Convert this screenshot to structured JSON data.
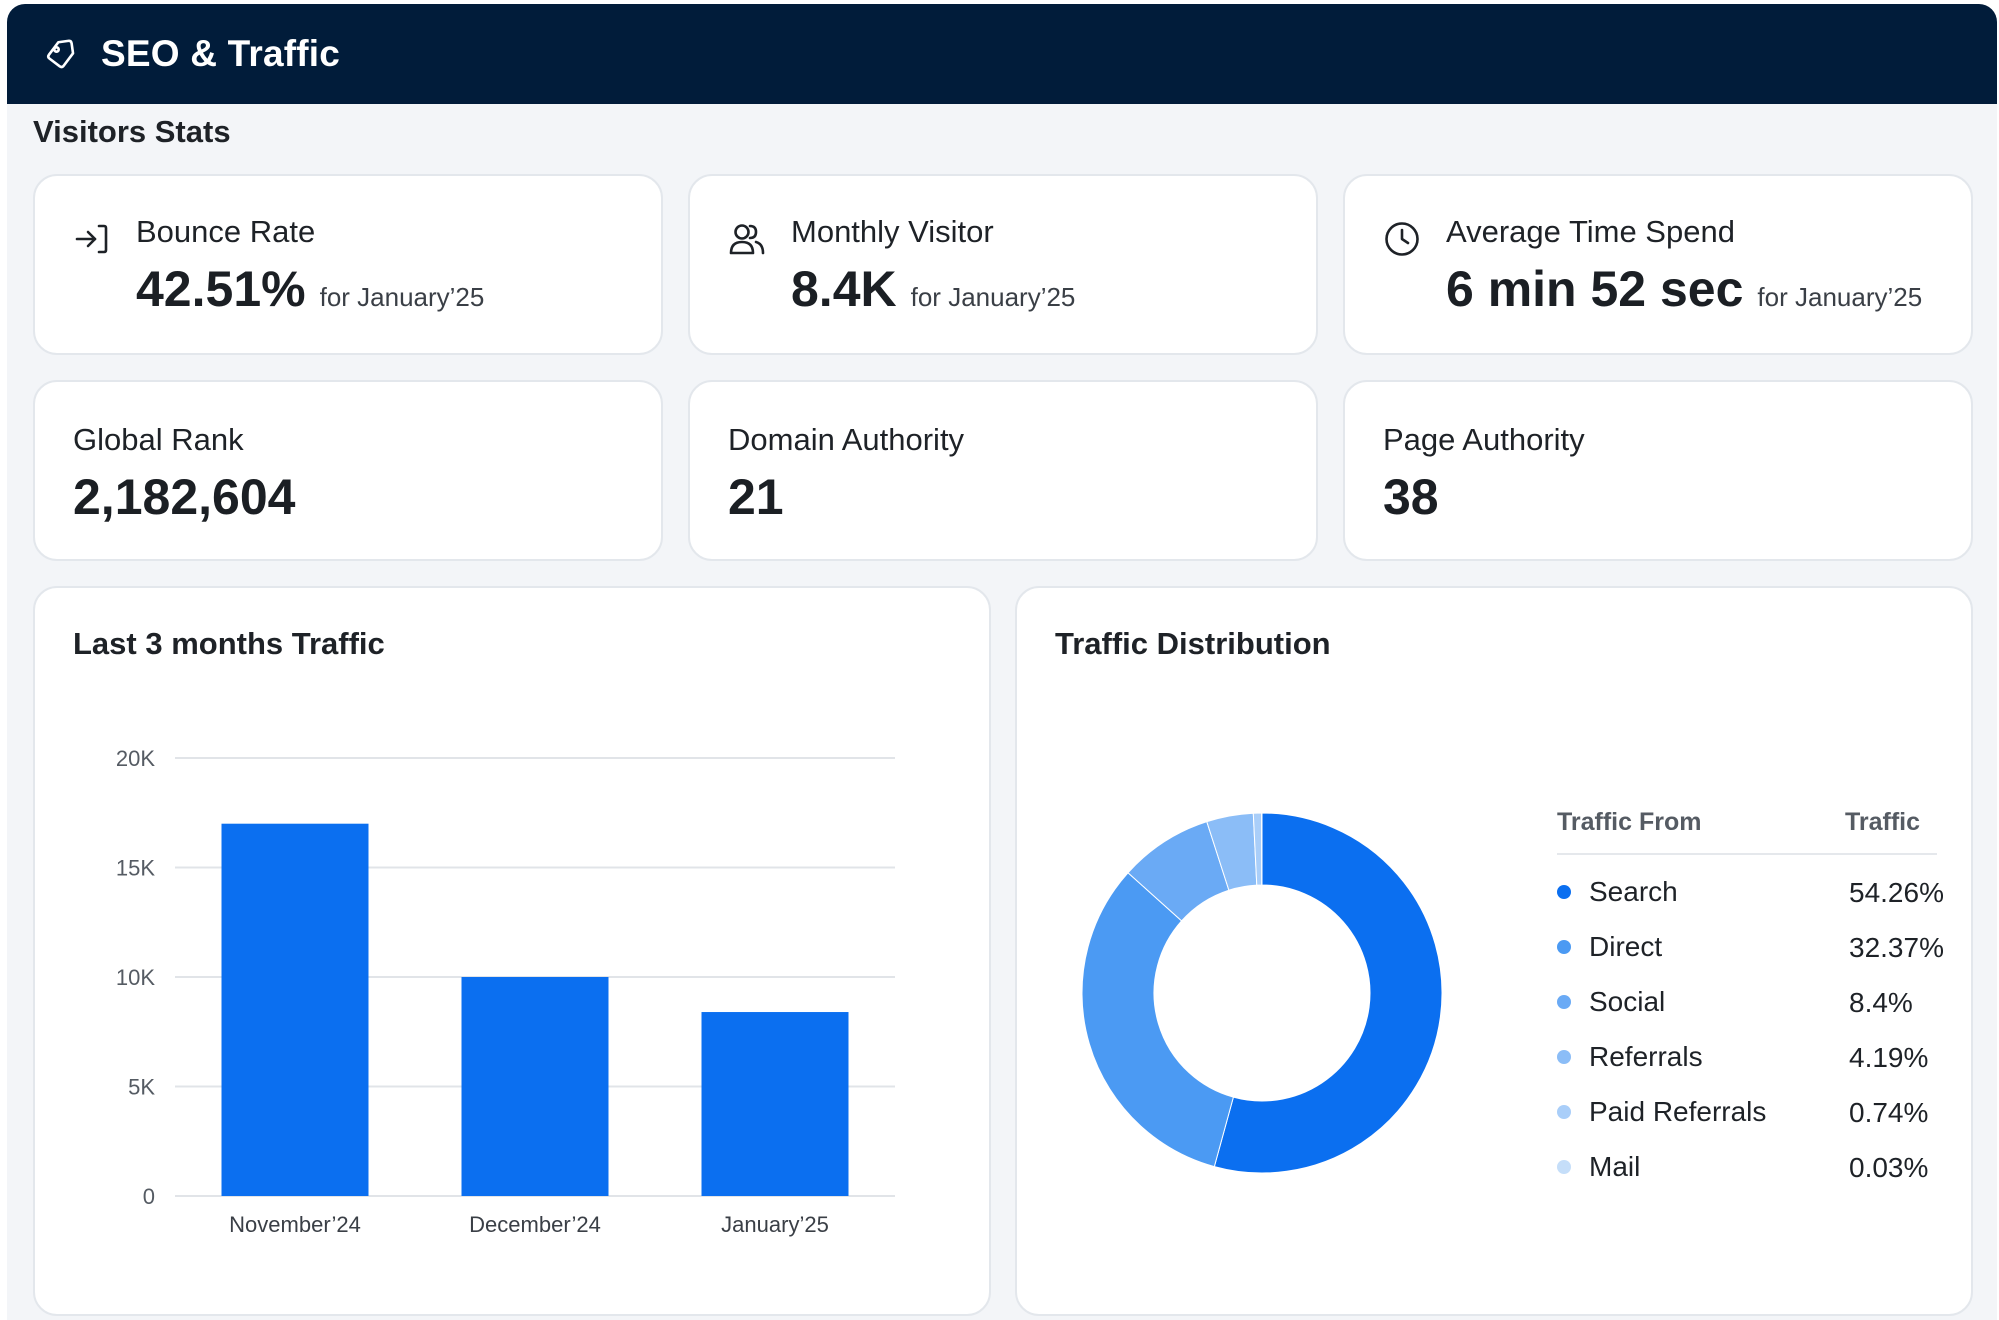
{
  "header": {
    "title": "SEO & Traffic",
    "icon": "tag-icon",
    "background": "#011c3a"
  },
  "visitors": {
    "section_title": "Visitors Stats",
    "bounce_rate": {
      "label": "Bounce Rate",
      "value": "42.51%",
      "period": "for January’25",
      "icon": "enter-arrow-icon"
    },
    "monthly_visitor": {
      "label": "Monthly Visitor",
      "value": "8.4K",
      "period": "for January’25",
      "icon": "users-icon"
    },
    "avg_time": {
      "label": "Average Time Spend",
      "value": "6 min 52 sec",
      "period": "for January’25",
      "icon": "clock-icon"
    },
    "global_rank": {
      "label": "Global Rank",
      "value": "2,182,604"
    },
    "domain_authority": {
      "label": "Domain Authority",
      "value": "21"
    },
    "page_authority": {
      "label": "Page Authority",
      "value": "38"
    }
  },
  "traffic_chart": {
    "title": "Last 3 months Traffic"
  },
  "distribution": {
    "title": "Traffic Distribution",
    "col_from": "Traffic From",
    "col_traffic": "Traffic",
    "rows": [
      {
        "name": "Search",
        "pct": "54.26%",
        "color": "#0b6ff0"
      },
      {
        "name": "Direct",
        "pct": "32.37%",
        "color": "#4b9af3"
      },
      {
        "name": "Social",
        "pct": "8.4%",
        "color": "#6aaaf5"
      },
      {
        "name": "Referrals",
        "pct": "4.19%",
        "color": "#8bbdf7"
      },
      {
        "name": "Paid Referrals",
        "pct": "0.74%",
        "color": "#a9cef9"
      },
      {
        "name": "Mail",
        "pct": "0.03%",
        "color": "#c5def9"
      }
    ]
  },
  "chart_data": [
    {
      "type": "bar",
      "title": "Last 3 months Traffic",
      "categories": [
        "November’24",
        "December’24",
        "January’25"
      ],
      "values": [
        17000,
        10000,
        8400
      ],
      "ylim": [
        0,
        20000
      ],
      "yticks": [
        "0",
        "5K",
        "10K",
        "15K",
        "20K"
      ],
      "ytick_values": [
        0,
        5000,
        10000,
        15000,
        20000
      ],
      "grid": true,
      "color": "#0b6ff0"
    },
    {
      "type": "pie",
      "title": "Traffic Distribution",
      "donut": true,
      "categories": [
        "Search",
        "Direct",
        "Social",
        "Referrals",
        "Paid Referrals",
        "Mail"
      ],
      "values": [
        54.26,
        32.37,
        8.4,
        4.19,
        0.74,
        0.03
      ],
      "colors": [
        "#0b6ff0",
        "#4b9af3",
        "#6aaaf5",
        "#8bbdf7",
        "#a9cef9",
        "#c5def9"
      ]
    }
  ]
}
